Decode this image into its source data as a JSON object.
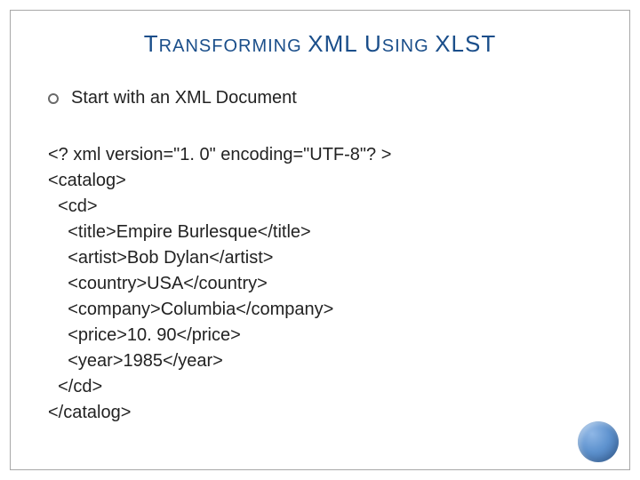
{
  "title": {
    "text_parts": [
      {
        "t": "T",
        "cls": "big"
      },
      {
        "t": "RANSFORMING ",
        "cls": "small"
      },
      {
        "t": "XML U",
        "cls": "big"
      },
      {
        "t": "SING ",
        "cls": "small"
      },
      {
        "t": "XLST",
        "cls": "big"
      }
    ],
    "color": "#1a4e8a",
    "fontsize_big": 26,
    "fontsize_small": 20
  },
  "bullet": {
    "marker_color": "#6a6a6a",
    "text": "Start with an XML Document",
    "fontsize": 20
  },
  "code": {
    "fontsize": 20,
    "lines": [
      "<? xml version=\"1. 0\" encoding=\"UTF-8\"? >",
      "<catalog>",
      "  <cd>",
      "    <title>Empire Burlesque</title>",
      "    <artist>Bob Dylan</artist>",
      "    <country>USA</country>",
      "    <company>Columbia</company>",
      "    <price>10. 90</price>",
      "    <year>1985</year>",
      "  </cd>",
      "</catalog>"
    ]
  },
  "frame": {
    "border_color": "#a8a8a8",
    "background": "#ffffff"
  },
  "decoration": {
    "circle_gradient_inner": "#8fb7e6",
    "circle_gradient_mid": "#5f93cf",
    "circle_gradient_outer": "#3a6aa8"
  }
}
